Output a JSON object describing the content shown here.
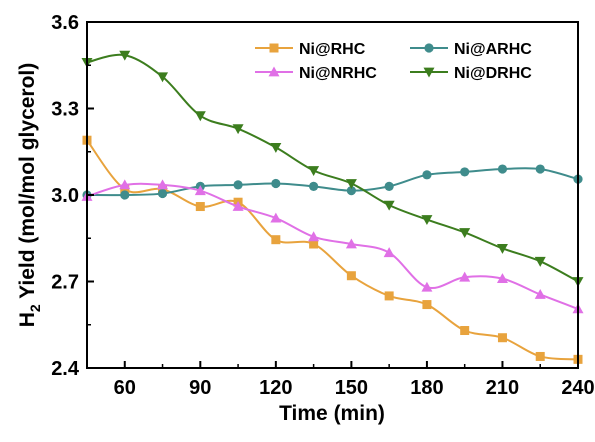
{
  "chart_data": {
    "type": "line",
    "xlabel": "Time (min)",
    "ylabel_prefix": "H",
    "ylabel_sub": "2",
    "ylabel_rest": " Yield (mol/mol glycerol)",
    "xlim": [
      45,
      240
    ],
    "ylim": [
      2.4,
      3.6
    ],
    "x_ticks": [
      60,
      90,
      120,
      150,
      180,
      210,
      240
    ],
    "x_tick_labels": [
      "60",
      "90",
      "120",
      "150",
      "180",
      "210",
      "240"
    ],
    "y_ticks": [
      2.4,
      2.7,
      3.0,
      3.3,
      3.6
    ],
    "y_tick_labels": [
      "2.4",
      "2.7",
      "3.0",
      "3.3",
      "3.6"
    ],
    "x": [
      45,
      60,
      75,
      90,
      105,
      120,
      135,
      150,
      165,
      180,
      195,
      210,
      225,
      240
    ],
    "legend_position": "top-right",
    "series": [
      {
        "name": "Ni@RHC",
        "color": "#E8A33D",
        "marker": "square",
        "values": [
          3.19,
          3.02,
          3.02,
          2.96,
          2.975,
          2.845,
          2.83,
          2.72,
          2.65,
          2.62,
          2.53,
          2.505,
          2.44,
          2.43
        ]
      },
      {
        "name": "Ni@ARHC",
        "color": "#3F8C8C",
        "marker": "circle",
        "values": [
          3.0,
          3.0,
          3.005,
          3.03,
          3.035,
          3.04,
          3.03,
          3.015,
          3.03,
          3.07,
          3.08,
          3.09,
          3.09,
          3.055
        ]
      },
      {
        "name": "Ni@NRHC",
        "color": "#E070E6",
        "marker": "triangle-up",
        "values": [
          2.995,
          3.035,
          3.035,
          3.015,
          2.96,
          2.92,
          2.855,
          2.83,
          2.8,
          2.68,
          2.715,
          2.71,
          2.655,
          2.605
        ]
      },
      {
        "name": "Ni@DRHC",
        "color": "#3C7D1E",
        "marker": "triangle-down",
        "values": [
          3.46,
          3.485,
          3.41,
          3.275,
          3.23,
          3.165,
          3.085,
          3.04,
          2.965,
          2.915,
          2.87,
          2.815,
          2.77,
          2.7
        ]
      }
    ]
  }
}
